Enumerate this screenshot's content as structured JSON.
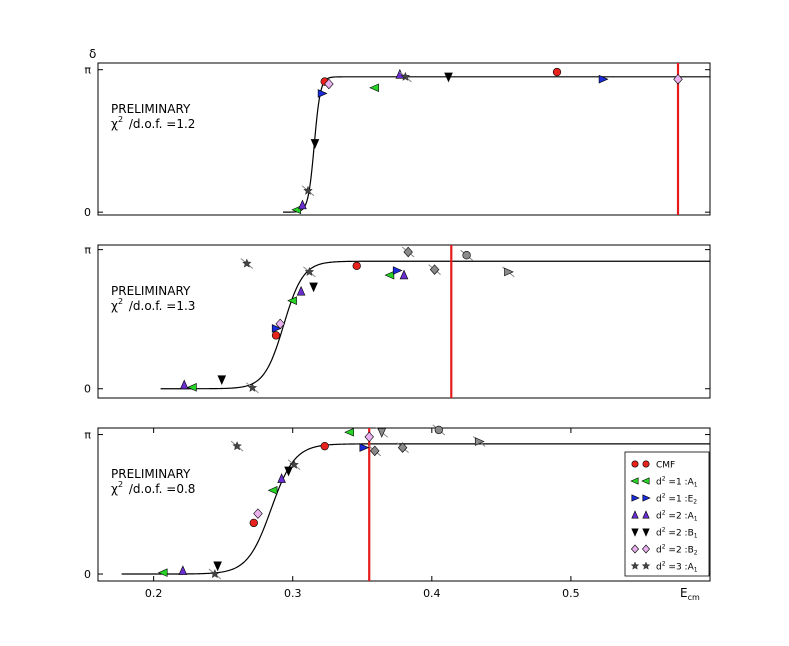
{
  "figure": {
    "y_symbol": "δ",
    "x_label_main": "E",
    "x_label_sub": "cm",
    "note_line1": "PRELIMINARY"
  },
  "chart_data": [
    {
      "type": "scatter",
      "note_label": "/d.o.f.",
      "chi2_value": "1.2",
      "xlim": [
        0.16,
        0.6
      ],
      "ylim": [
        -0.06,
        3.141
      ],
      "yticks": [
        {
          "value": 0,
          "label": "0"
        },
        {
          "value": 3.0,
          "label": "π"
        }
      ],
      "xticks": [],
      "threshold": 0.577,
      "curve": {
        "x_start": 0.293,
        "x_end": 0.6,
        "center": 0.3155,
        "width": 0.0022,
        "plateau": 2.85
      },
      "points": [
        {
          "series": 0,
          "x": 0.323,
          "y": 2.75
        },
        {
          "series": 0,
          "x": 0.49,
          "y": 2.95
        },
        {
          "series": 1,
          "x": 0.303,
          "y": 0.05
        },
        {
          "series": 1,
          "x": 0.359,
          "y": 2.62
        },
        {
          "series": 2,
          "x": 0.321,
          "y": 2.5
        },
        {
          "series": 2,
          "x": 0.523,
          "y": 2.8
        },
        {
          "series": 3,
          "x": 0.307,
          "y": 0.15
        },
        {
          "series": 3,
          "x": 0.377,
          "y": 2.9
        },
        {
          "series": 4,
          "x": 0.316,
          "y": 1.45
        },
        {
          "series": 4,
          "x": 0.412,
          "y": 2.85
        },
        {
          "series": 5,
          "x": 0.326,
          "y": 2.7
        },
        {
          "series": 5,
          "x": 0.577,
          "y": 2.8
        },
        {
          "series": 6,
          "x": 0.311,
          "y": 0.45
        },
        {
          "series": 6,
          "x": 0.381,
          "y": 2.85
        }
      ]
    },
    {
      "type": "scatter",
      "note_label": "/d.o.f.",
      "chi2_value": "1.3",
      "xlim": [
        0.16,
        0.6
      ],
      "ylim": [
        -0.2,
        3.1
      ],
      "yticks": [
        {
          "value": 0,
          "label": "0"
        },
        {
          "value": 3.0,
          "label": "π"
        }
      ],
      "xticks": [],
      "threshold": 0.414,
      "curve": {
        "x_start": 0.205,
        "x_end": 0.6,
        "center": 0.2935,
        "width": 0.007,
        "plateau": 2.75
      },
      "points": [
        {
          "series": 0,
          "x": 0.288,
          "y": 1.15
        },
        {
          "series": 0,
          "x": 0.346,
          "y": 2.65
        },
        {
          "series": 1,
          "x": 0.228,
          "y": 0.03
        },
        {
          "series": 1,
          "x": 0.3,
          "y": 1.9
        },
        {
          "series": 1,
          "x": 0.37,
          "y": 2.45
        },
        {
          "series": 2,
          "x": 0.288,
          "y": 1.3
        },
        {
          "series": 2,
          "x": 0.375,
          "y": 2.55
        },
        {
          "series": 3,
          "x": 0.222,
          "y": 0.08
        },
        {
          "series": 3,
          "x": 0.306,
          "y": 2.1
        },
        {
          "series": 3,
          "x": 0.38,
          "y": 2.45
        },
        {
          "series": 4,
          "x": 0.249,
          "y": 0.2
        },
        {
          "series": 4,
          "x": 0.315,
          "y": 2.2
        },
        {
          "series": 5,
          "x": 0.291,
          "y": 1.4
        },
        {
          "series": 6,
          "x": 0.267,
          "y": 2.7
        },
        {
          "series": 6,
          "x": 0.271,
          "y": 0.02
        },
        {
          "series": 6,
          "x": 0.312,
          "y": 2.52
        },
        {
          "series": 7,
          "x": 0.383,
          "y": 2.95
        },
        {
          "series": 7,
          "x": 0.402,
          "y": 2.57
        },
        {
          "series": 8,
          "x": 0.425,
          "y": 2.88
        },
        {
          "series": 9,
          "x": 0.455,
          "y": 2.52
        }
      ]
    },
    {
      "type": "scatter",
      "note_label": "/d.o.f.",
      "chi2_value": "0.8",
      "xlim": [
        0.16,
        0.6
      ],
      "ylim": [
        -0.15,
        3.141
      ],
      "yticks": [
        {
          "value": 0,
          "label": "0"
        },
        {
          "value": 3.0,
          "label": "π"
        }
      ],
      "xticks": [
        {
          "value": 0.2,
          "label": "0.2"
        },
        {
          "value": 0.3,
          "label": "0.3"
        },
        {
          "value": 0.4,
          "label": "0.4"
        },
        {
          "value": 0.5,
          "label": "0.5"
        }
      ],
      "threshold": 0.355,
      "curve": {
        "x_start": 0.177,
        "x_end": 0.6,
        "center": 0.2845,
        "width": 0.0085,
        "plateau": 2.8
      },
      "points": [
        {
          "series": 0,
          "x": 0.272,
          "y": 1.1
        },
        {
          "series": 0,
          "x": 0.323,
          "y": 2.75
        },
        {
          "series": 1,
          "x": 0.207,
          "y": 0.03
        },
        {
          "series": 1,
          "x": 0.286,
          "y": 1.8
        },
        {
          "series": 1,
          "x": 0.341,
          "y": 3.05
        },
        {
          "series": 2,
          "x": 0.351,
          "y": 2.72
        },
        {
          "series": 3,
          "x": 0.221,
          "y": 0.07
        },
        {
          "series": 3,
          "x": 0.292,
          "y": 2.05
        },
        {
          "series": 4,
          "x": 0.246,
          "y": 0.18
        },
        {
          "series": 4,
          "x": 0.297,
          "y": 2.22
        },
        {
          "series": 5,
          "x": 0.275,
          "y": 1.3
        },
        {
          "series": 5,
          "x": 0.355,
          "y": 2.95
        },
        {
          "series": 6,
          "x": 0.26,
          "y": 2.75
        },
        {
          "series": 6,
          "x": 0.244,
          "y": 0.0
        },
        {
          "series": 6,
          "x": 0.301,
          "y": 2.35
        },
        {
          "series": 7,
          "x": 0.359,
          "y": 2.65
        },
        {
          "series": 7,
          "x": 0.379,
          "y": 2.72
        },
        {
          "series": 10,
          "x": 0.364,
          "y": 3.05
        },
        {
          "series": 8,
          "x": 0.405,
          "y": 3.1
        },
        {
          "series": 9,
          "x": 0.434,
          "y": 2.85
        }
      ]
    }
  ],
  "series_styles": [
    {
      "marker": "circle",
      "color": "#e8231e"
    },
    {
      "marker": "tri-left",
      "color": "#27d327"
    },
    {
      "marker": "tri-right",
      "color": "#1a2bd9"
    },
    {
      "marker": "tri-up",
      "color": "#6a2ed0"
    },
    {
      "marker": "tri-down",
      "color": "#000000"
    },
    {
      "marker": "diamond",
      "color": "#e9b2ef"
    },
    {
      "marker": "star",
      "color": "#444444"
    },
    {
      "marker": "diamond",
      "color": "#8a8a8a"
    },
    {
      "marker": "circle",
      "color": "#8a8a8a"
    },
    {
      "marker": "tri-right",
      "color": "#8a8a8a"
    },
    {
      "marker": "tri-down",
      "color": "#8a8a8a"
    }
  ],
  "legend": {
    "placement": "lower-right",
    "entries": [
      {
        "base": "CMF",
        "sup": "",
        "suffix": "",
        "sub": "",
        "series": 0
      },
      {
        "base": "d",
        "sup": "2",
        "suffix": " =1 :A",
        "sub": "1",
        "series": 1
      },
      {
        "base": "d",
        "sup": "2",
        "suffix": " =1 :E",
        "sub": "2",
        "series": 2
      },
      {
        "base": "d",
        "sup": "2",
        "suffix": " =2 :A",
        "sub": "1",
        "series": 3
      },
      {
        "base": "d",
        "sup": "2",
        "suffix": " =2 :B",
        "sub": "1",
        "series": 4
      },
      {
        "base": "d",
        "sup": "2",
        "suffix": " =2 :B",
        "sub": "2",
        "series": 5
      },
      {
        "base": "d",
        "sup": "2",
        "suffix": " =3 :A",
        "sub": "1",
        "series": 6
      }
    ]
  },
  "colors": {
    "threshold_line": "#e61a1a",
    "curve": "#000000",
    "axes": "#000000"
  }
}
